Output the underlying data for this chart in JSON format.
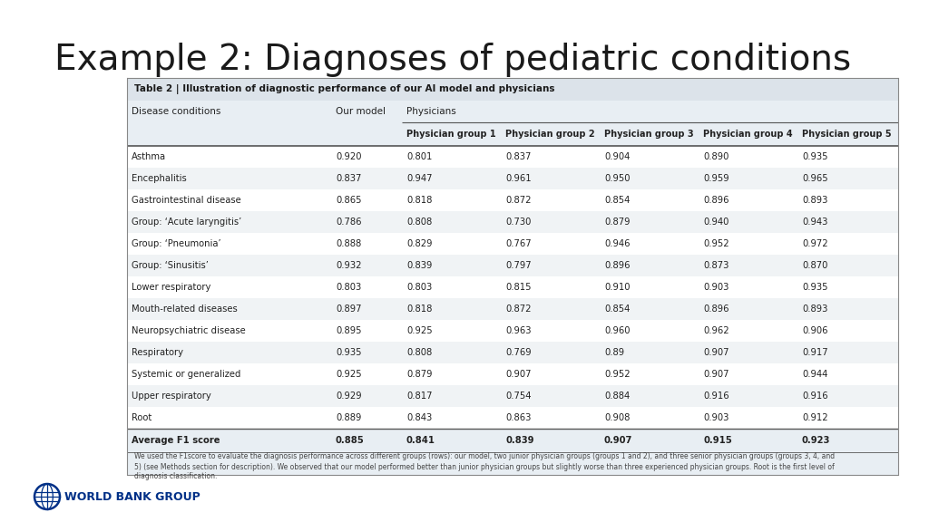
{
  "title": "Example 2: Diagnoses of pediatric conditions",
  "table_title": "Table 2 | Illustration of diagnostic performance of our AI model and physicians",
  "rows": [
    [
      "Asthma",
      "0.920",
      "0.801",
      "0.837",
      "0.904",
      "0.890",
      "0.935"
    ],
    [
      "Encephalitis",
      "0.837",
      "0.947",
      "0.961",
      "0.950",
      "0.959",
      "0.965"
    ],
    [
      "Gastrointestinal disease",
      "0.865",
      "0.818",
      "0.872",
      "0.854",
      "0.896",
      "0.893"
    ],
    [
      "Group: ‘Acute laryngitis’",
      "0.786",
      "0.808",
      "0.730",
      "0.879",
      "0.940",
      "0.943"
    ],
    [
      "Group: ‘Pneumonia’",
      "0.888",
      "0.829",
      "0.767",
      "0.946",
      "0.952",
      "0.972"
    ],
    [
      "Group: ‘Sinusitis’",
      "0.932",
      "0.839",
      "0.797",
      "0.896",
      "0.873",
      "0.870"
    ],
    [
      "Lower respiratory",
      "0.803",
      "0.803",
      "0.815",
      "0.910",
      "0.903",
      "0.935"
    ],
    [
      "Mouth-related diseases",
      "0.897",
      "0.818",
      "0.872",
      "0.854",
      "0.896",
      "0.893"
    ],
    [
      "Neuropsychiatric disease",
      "0.895",
      "0.925",
      "0.963",
      "0.960",
      "0.962",
      "0.906"
    ],
    [
      "Respiratory",
      "0.935",
      "0.808",
      "0.769",
      "0.89",
      "0.907",
      "0.917"
    ],
    [
      "Systemic or generalized",
      "0.925",
      "0.879",
      "0.907",
      "0.952",
      "0.907",
      "0.944"
    ],
    [
      "Upper respiratory",
      "0.929",
      "0.817",
      "0.754",
      "0.884",
      "0.916",
      "0.916"
    ],
    [
      "Root",
      "0.889",
      "0.843",
      "0.863",
      "0.908",
      "0.903",
      "0.912"
    ]
  ],
  "avg_row": [
    "Average F1 score",
    "0.885",
    "0.841",
    "0.839",
    "0.907",
    "0.915",
    "0.923"
  ],
  "footnote_lines": [
    "We used the F1score to evaluate the diagnosis performance across different groups (rows): our model, two junior physician groups (groups 1 and 2), and three senior physician groups (groups 3, 4, and",
    "5) (see Methods section for description). We observed that our model performed better than junior physician groups but slightly worse than three experienced physician groups. Root is the first level of",
    "diagnosis classification."
  ],
  "bg_color": "#ffffff",
  "title_color": "#1a1a1a",
  "table_title_bg": "#dce3ea",
  "header1_bg": "#e8eef3",
  "header2_bg": "#e8eef3",
  "footnote_bg": "#e8eef3",
  "row_even_bg": "#ffffff",
  "row_odd_bg": "#f0f3f5",
  "avg_row_bg": "#e8eef3",
  "col_divider": "#aaaaaa",
  "row_divider": "#cccccc",
  "strong_divider": "#555555",
  "pg_labels": [
    "Physician group 1",
    "Physician group 2",
    "Physician group 3",
    "Physician group 4",
    "Physician group 5"
  ],
  "footer_text": "WORLD BANK GROUP",
  "footer_color": "#003087"
}
